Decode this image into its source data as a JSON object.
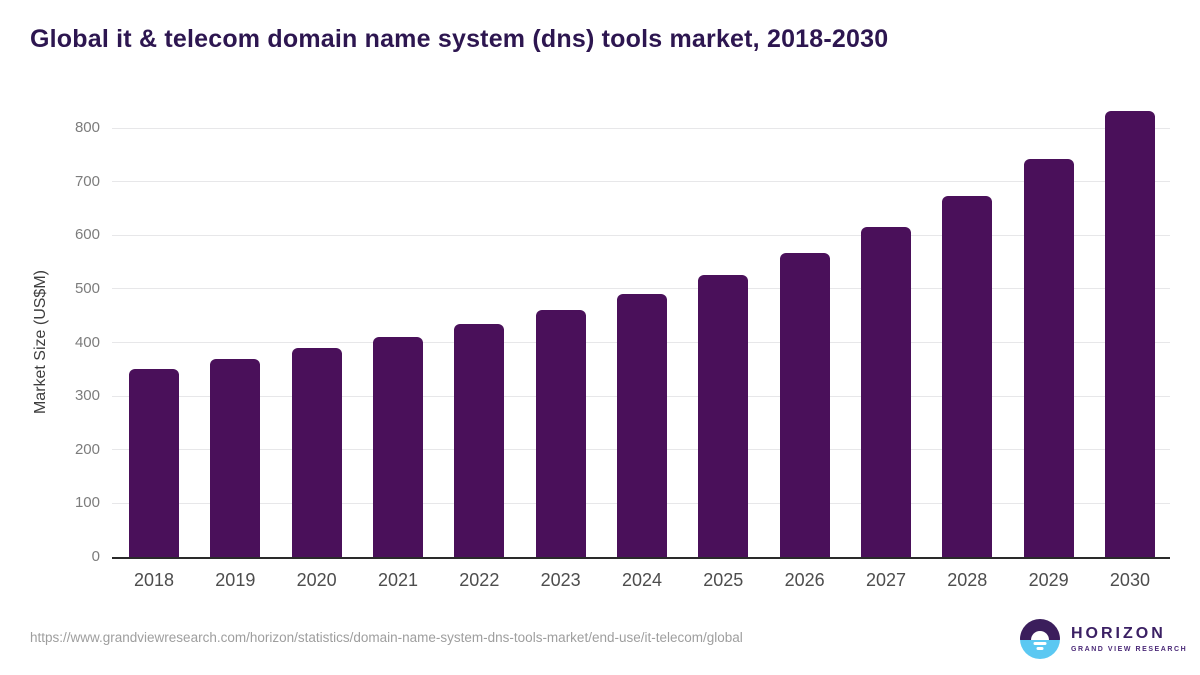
{
  "chart_data": {
    "type": "bar",
    "title": "Global it & telecom domain name system (dns) tools market, 2018-2030",
    "categories": [
      "2018",
      "2019",
      "2020",
      "2021",
      "2022",
      "2023",
      "2024",
      "2025",
      "2026",
      "2027",
      "2028",
      "2029",
      "2030"
    ],
    "values": [
      351,
      369,
      390,
      411,
      435,
      460,
      491,
      526,
      567,
      615,
      674,
      743,
      831
    ],
    "xlabel": "",
    "ylabel": "Market Size (US$M)",
    "ylim": [
      0,
      800
    ],
    "yticks": [
      0,
      100,
      200,
      300,
      400,
      500,
      600,
      700,
      800
    ],
    "grid": true,
    "legend": false,
    "bar_color": "#4a105a"
  },
  "footer": {
    "source_url": "https://www.grandviewresearch.com/horizon/statistics/domain-name-system-dns-tools-market/end-use/it-telecom/global",
    "logo": {
      "brand": "HORIZON",
      "tagline": "GRAND VIEW RESEARCH"
    }
  },
  "colors": {
    "bar": "#4a105a",
    "title_text": "#2d1650",
    "axis_line": "#2a2a2a",
    "gridline": "#e7e7e9",
    "y_tick_text": "#7c7c7c",
    "x_tick_text": "#4d4d4d",
    "url_text": "#9e9e9e",
    "logo_purple": "#3b1e5c",
    "logo_blue": "#5bc8f2"
  }
}
